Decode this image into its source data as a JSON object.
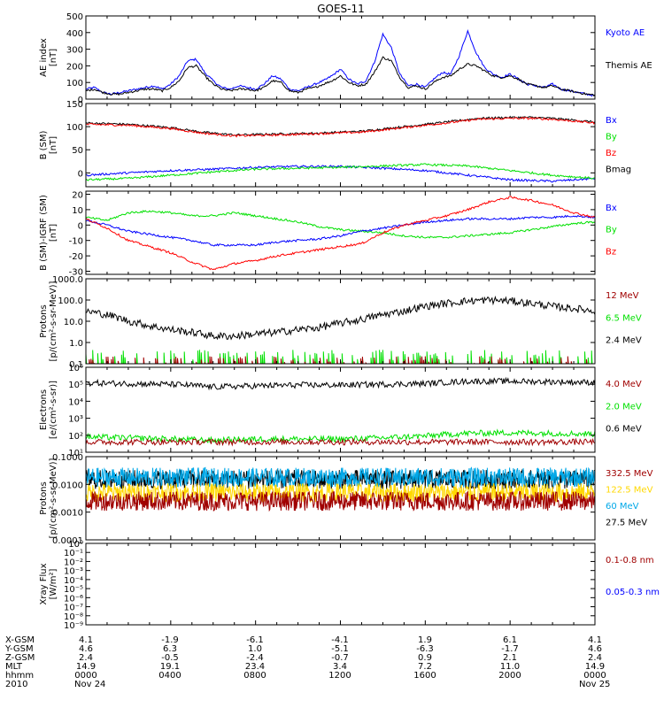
{
  "title": "GOES-11",
  "colors": {
    "blue": "#0000ff",
    "black": "#000000",
    "red": "#ff0000",
    "darkred": "#a00000",
    "green": "#00e000",
    "orange": "#ffd800",
    "cyan": "#00a8e8"
  },
  "chart_data": [
    {
      "type": "line",
      "ylabel": [
        "AE index",
        "[nT]"
      ],
      "ylim": [
        0,
        500
      ],
      "yticks": [
        "0",
        "100",
        "200",
        "300",
        "400",
        "500"
      ],
      "legend": [
        {
          "name": "Kyoto AE",
          "color": "#0000ff"
        },
        {
          "name": "Themis AE",
          "color": "#000000"
        }
      ],
      "series": [
        {
          "name": "Kyoto AE",
          "color": "#0000ff",
          "x": [
            0,
            0.4,
            0.8,
            1.2,
            1.6,
            2,
            2.4,
            2.8,
            3.2,
            3.6,
            4,
            4.4,
            4.8,
            5.2,
            5.6,
            6,
            6.4,
            6.8,
            7.2,
            7.6,
            8,
            8.4,
            8.8,
            9.2,
            9.6,
            10,
            10.4,
            10.8,
            11.2,
            11.6,
            12,
            12.4,
            12.8,
            13.2,
            13.6,
            14,
            14.4,
            14.8,
            15.2,
            15.6,
            16,
            16.4,
            16.8,
            17.2,
            17.6,
            18,
            18.4,
            18.8,
            19.2,
            19.6,
            20,
            20.4,
            20.8,
            21.2,
            21.6,
            22,
            22.4,
            22.8,
            23.2,
            23.6,
            24
          ],
          "y": [
            60,
            70,
            40,
            30,
            40,
            50,
            60,
            70,
            80,
            60,
            90,
            140,
            230,
            240,
            160,
            110,
            70,
            60,
            80,
            70,
            60,
            90,
            140,
            120,
            60,
            50,
            70,
            90,
            110,
            140,
            180,
            120,
            90,
            110,
            220,
            390,
            310,
            150,
            80,
            90,
            70,
            120,
            160,
            150,
            260,
            410,
            280,
            190,
            150,
            130,
            150,
            120,
            90,
            80,
            70,
            90,
            60,
            50,
            40,
            30,
            20
          ]
        },
        {
          "name": "Themis AE",
          "color": "#000000",
          "x": [
            0,
            0.4,
            0.8,
            1.2,
            1.6,
            2,
            2.4,
            2.8,
            3.2,
            3.6,
            4,
            4.4,
            4.8,
            5.2,
            5.6,
            6,
            6.4,
            6.8,
            7.2,
            7.6,
            8,
            8.4,
            8.8,
            9.2,
            9.6,
            10,
            10.4,
            10.8,
            11.2,
            11.6,
            12,
            12.4,
            12.8,
            13.2,
            13.6,
            14,
            14.4,
            14.8,
            15.2,
            15.6,
            16,
            16.4,
            16.8,
            17.2,
            17.6,
            18,
            18.4,
            18.8,
            19.2,
            19.6,
            20,
            20.4,
            20.8,
            21.2,
            21.6,
            22,
            22.4,
            22.8,
            23.2,
            23.6,
            24
          ],
          "y": [
            50,
            60,
            40,
            30,
            30,
            40,
            50,
            60,
            60,
            50,
            70,
            110,
            190,
            200,
            140,
            90,
            60,
            50,
            60,
            60,
            50,
            70,
            110,
            100,
            50,
            40,
            60,
            70,
            90,
            110,
            140,
            100,
            80,
            90,
            160,
            250,
            230,
            130,
            70,
            80,
            60,
            100,
            130,
            140,
            180,
            210,
            200,
            170,
            140,
            130,
            140,
            120,
            90,
            80,
            70,
            80,
            60,
            50,
            40,
            30,
            25
          ]
        }
      ]
    },
    {
      "type": "line",
      "ylabel": [
        "B (SM)",
        "[nT]"
      ],
      "ylim": [
        -30,
        150
      ],
      "yticks": [
        "0",
        "50",
        "100",
        "150"
      ],
      "legend": [
        {
          "name": "Bx",
          "color": "#0000ff"
        },
        {
          "name": "By",
          "color": "#00e000"
        },
        {
          "name": "Bz",
          "color": "#ff0000"
        },
        {
          "name": "Bmag",
          "color": "#000000"
        }
      ],
      "series": [
        {
          "name": "Bmag",
          "color": "#000000",
          "x": [
            0,
            2,
            4,
            5.5,
            7,
            9,
            11,
            13,
            15,
            17,
            18.5,
            20,
            21,
            22,
            24
          ],
          "y": [
            108,
            105,
            98,
            88,
            82,
            84,
            86,
            90,
            100,
            110,
            118,
            120,
            120,
            118,
            110
          ]
        },
        {
          "name": "Bz",
          "color": "#ff0000",
          "x": [
            0,
            2,
            4,
            5.5,
            7,
            9,
            11,
            13,
            15,
            17,
            18.5,
            20,
            21,
            22,
            24
          ],
          "y": [
            105,
            103,
            96,
            86,
            80,
            82,
            85,
            88,
            98,
            108,
            116,
            118,
            118,
            116,
            108
          ]
        },
        {
          "name": "Bx",
          "color": "#0000ff",
          "x": [
            0,
            2,
            4,
            6,
            8,
            10,
            12,
            14,
            16,
            18,
            20,
            22,
            24
          ],
          "y": [
            -5,
            0,
            5,
            8,
            12,
            14,
            14,
            10,
            5,
            -5,
            -15,
            -18,
            -12
          ]
        },
        {
          "name": "By",
          "color": "#00e000",
          "x": [
            0,
            2,
            4,
            6,
            8,
            10,
            12,
            14,
            16,
            18,
            20,
            22,
            24
          ],
          "y": [
            -15,
            -12,
            -5,
            2,
            8,
            10,
            12,
            15,
            18,
            15,
            5,
            -5,
            -12
          ]
        }
      ]
    },
    {
      "type": "line",
      "ylabel": [
        "B (SM)-IGRF (SM)",
        "[nT]"
      ],
      "ylim": [
        -32,
        22
      ],
      "yticks": [
        "-30",
        "-20",
        "-10",
        "0",
        "10",
        "20"
      ],
      "legend": [
        {
          "name": "Bx",
          "color": "#0000ff"
        },
        {
          "name": "By",
          "color": "#00e000"
        },
        {
          "name": "Bz",
          "color": "#ff0000"
        }
      ],
      "series": [
        {
          "name": "By",
          "color": "#00e000",
          "x": [
            0,
            1,
            2,
            3,
            4,
            5,
            6,
            7,
            8,
            9,
            10,
            11,
            12,
            13,
            14,
            15,
            16,
            17,
            18,
            19,
            20,
            21,
            22,
            23,
            24
          ],
          "y": [
            5,
            3,
            8,
            9,
            8,
            6,
            6,
            8,
            6,
            4,
            2,
            -1,
            -3,
            -4,
            -5,
            -7,
            -8,
            -8,
            -7,
            -6,
            -5,
            -3,
            -1,
            1,
            2
          ]
        },
        {
          "name": "Bx",
          "color": "#0000ff",
          "x": [
            0,
            1,
            2,
            3,
            4,
            5,
            6,
            7,
            8,
            9,
            10,
            11,
            12,
            13,
            14,
            15,
            16,
            17,
            18,
            19,
            20,
            21,
            22,
            23,
            24
          ],
          "y": [
            3,
            0,
            -4,
            -6,
            -8,
            -10,
            -13,
            -13,
            -13,
            -11,
            -10,
            -9,
            -7,
            -4,
            -2,
            0,
            2,
            3,
            4,
            4,
            4,
            5,
            5,
            6,
            5
          ]
        },
        {
          "name": "Bz",
          "color": "#ff0000",
          "x": [
            0,
            1,
            2,
            3,
            4,
            5,
            6,
            7,
            8,
            9,
            10,
            11,
            12,
            13,
            14,
            15,
            16,
            17,
            18,
            19,
            20,
            21,
            22,
            23,
            24
          ],
          "y": [
            4,
            -2,
            -10,
            -14,
            -18,
            -24,
            -29,
            -25,
            -23,
            -20,
            -18,
            -16,
            -14,
            -12,
            -5,
            0,
            3,
            6,
            10,
            15,
            18,
            16,
            13,
            8,
            5
          ]
        }
      ]
    },
    {
      "type": "line",
      "ylabel": [
        "Protons",
        "[p/(cm²-s-sr-MeV)]"
      ],
      "yscale": "log",
      "ylim": [
        0.1,
        1000
      ],
      "yticks": [
        "0.1",
        "1.0",
        "10.0",
        "100.0",
        "1000.0"
      ],
      "legend": [
        {
          "name": "12 MeV",
          "color": "#a00000"
        },
        {
          "name": "6.5 MeV",
          "color": "#00e000"
        },
        {
          "name": "2.4 MeV",
          "color": "#000000"
        }
      ],
      "series": [
        {
          "name": "2.4 MeV",
          "color": "#000000",
          "x": [
            0,
            1,
            2,
            3,
            4,
            5,
            6,
            7,
            8,
            9,
            10,
            11,
            12,
            13,
            14,
            15,
            16,
            17,
            18,
            19,
            20,
            21,
            22,
            23,
            24
          ],
          "y": [
            30,
            20,
            10,
            6,
            4,
            3,
            2,
            2,
            2.5,
            3,
            4,
            5,
            8,
            12,
            20,
            30,
            50,
            70,
            90,
            100,
            90,
            70,
            50,
            40,
            30
          ]
        },
        {
          "name": "6.5 MeV",
          "color": "#00e000",
          "baseline": 0.1,
          "spikes": 0.3
        },
        {
          "name": "12 MeV",
          "color": "#a00000",
          "baseline": 0.1,
          "spikes": 0.15
        }
      ]
    },
    {
      "type": "line",
      "ylabel": [
        "Electrons",
        "[e/(cm²-s-sr)]"
      ],
      "yscale": "log",
      "ylim": [
        10,
        1000000
      ],
      "yticks": [
        "10¹",
        "10²",
        "10³",
        "10⁴",
        "10⁵",
        "10⁶"
      ],
      "legend": [
        {
          "name": "4.0 MeV",
          "color": "#a00000"
        },
        {
          "name": "2.0 MeV",
          "color": "#00e000"
        },
        {
          "name": "0.6 MeV",
          "color": "#000000"
        }
      ],
      "series": [
        {
          "name": "0.6 MeV",
          "color": "#000000",
          "x": [
            0,
            2,
            4,
            6,
            8,
            10,
            12,
            14,
            16,
            18,
            20,
            22,
            24
          ],
          "y": [
            120000,
            110000,
            100000,
            70000,
            80000,
            90000,
            90000,
            100000,
            110000,
            150000,
            150000,
            140000,
            130000
          ]
        },
        {
          "name": "2.0 MeV",
          "color": "#00e000",
          "x": [
            0,
            2,
            4,
            6,
            8,
            10,
            12,
            14,
            16,
            18,
            20,
            22,
            24
          ],
          "y": [
            80,
            70,
            60,
            50,
            60,
            60,
            60,
            70,
            90,
            130,
            140,
            130,
            120
          ]
        },
        {
          "name": "4.0 MeV",
          "color": "#a00000",
          "x": [
            0,
            2,
            4,
            6,
            8,
            10,
            12,
            14,
            16,
            18,
            20,
            22,
            24
          ],
          "y": [
            40,
            40,
            40,
            40,
            40,
            40,
            40,
            40,
            40,
            40,
            40,
            40,
            40
          ]
        }
      ]
    },
    {
      "type": "line",
      "ylabel": [
        "Protons",
        "[p/(cm²-s-sr-MeV)]"
      ],
      "yscale": "log",
      "ylim": [
        0.0001,
        0.1
      ],
      "yticks": [
        "0.0001",
        "0.0010",
        "0.0100",
        "0.1000"
      ],
      "legend": [
        {
          "name": "332.5 MeV",
          "color": "#a00000"
        },
        {
          "name": "122.5 MeV",
          "color": "#ffd800"
        },
        {
          "name": "60 MeV",
          "color": "#00a8e8"
        },
        {
          "name": "27.5 MeV",
          "color": "#000000"
        }
      ],
      "series": [
        {
          "name": "27.5 MeV",
          "color": "#000000",
          "level": 0.015
        },
        {
          "name": "60 MeV",
          "color": "#00a8e8",
          "level": 0.018
        },
        {
          "name": "122.5 MeV",
          "color": "#ffd800",
          "level": 0.005
        },
        {
          "name": "332.5 MeV",
          "color": "#a00000",
          "level": 0.0025
        }
      ]
    },
    {
      "type": "line",
      "ylabel": [
        "Xray Flux",
        "[W/m²]"
      ],
      "yscale": "log",
      "ylim": [
        1e-09,
        1
      ],
      "yticks": [
        "10⁻⁹",
        "10⁻⁸",
        "10⁻⁷",
        "10⁻⁶",
        "10⁻⁵",
        "10⁻⁴",
        "10⁻³",
        "10⁻²",
        "10⁻¹",
        "10⁰"
      ],
      "legend": [
        {
          "name": "0.1-0.8 nm",
          "color": "#a00000"
        },
        {
          "name": "0.05-0.3 nm",
          "color": "#0000ff"
        }
      ],
      "series": []
    }
  ],
  "ephemeris": {
    "rows": [
      {
        "label": "X-GSM",
        "values": [
          "4.1",
          "-1.9",
          "-6.1",
          "-4.1",
          "1.9",
          "6.1",
          "4.1"
        ]
      },
      {
        "label": "Y-GSM",
        "values": [
          "4.6",
          "6.3",
          "1.0",
          "-5.1",
          "-6.3",
          "-1.7",
          "4.6"
        ]
      },
      {
        "label": "Z-GSM",
        "values": [
          "2.4",
          "-0.5",
          "-2.4",
          "-0.7",
          "0.9",
          "2.1",
          "2.4"
        ]
      },
      {
        "label": "MLT",
        "values": [
          "14.9",
          "19.1",
          "23.4",
          "3.4",
          "7.2",
          "11.0",
          "14.9"
        ]
      },
      {
        "label": "hhmm",
        "values": [
          "0000",
          "0400",
          "0800",
          "1200",
          "1600",
          "2000",
          "0000"
        ]
      }
    ],
    "year": "2010",
    "dates": [
      "Nov 24",
      "Nov 25"
    ]
  }
}
